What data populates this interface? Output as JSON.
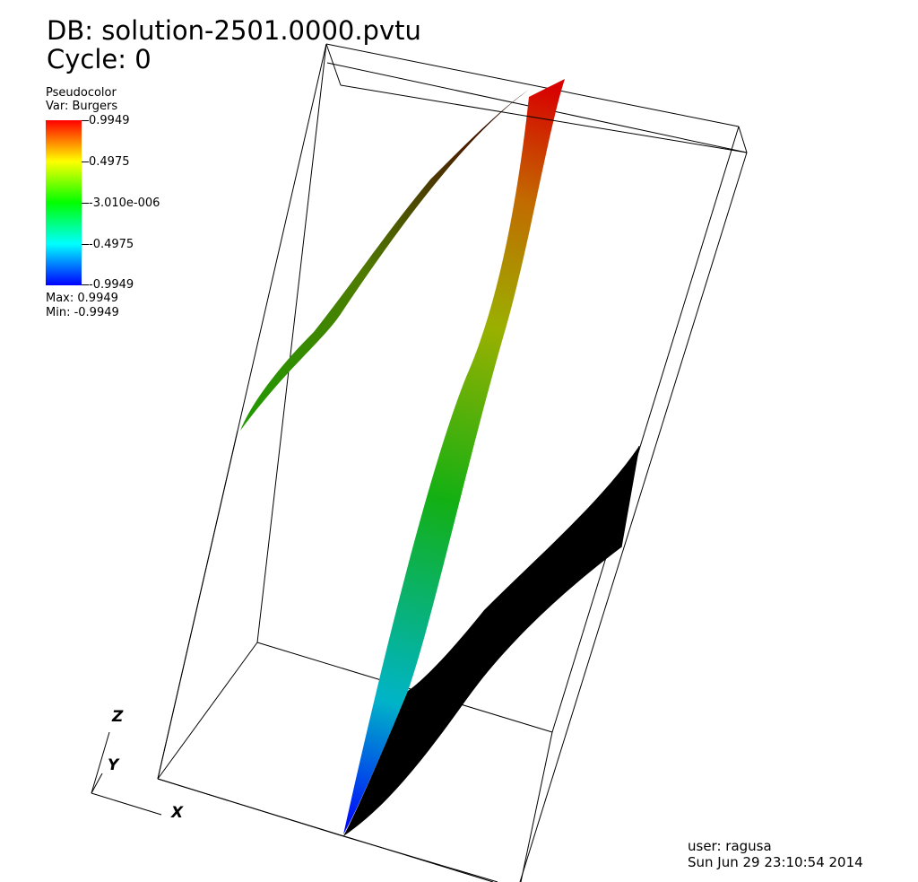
{
  "header": {
    "db": "DB: solution-2501.0000.pvtu",
    "cycle": "Cycle: 0"
  },
  "legend": {
    "plot_type": "Pseudocolor",
    "variable": "Var: Burgers",
    "ticks": [
      "0.9949",
      "0.4975",
      "-3.010e-006",
      "-0.4975",
      "-0.9949"
    ],
    "max": "Max:  0.9949",
    "min": "Min: -0.9949",
    "colormap": [
      "#ff0000",
      "#ffff00",
      "#00ff00",
      "#00ffff",
      "#0000ff"
    ]
  },
  "axes": {
    "x": "X",
    "y": "Y",
    "z": "Z"
  },
  "footer": {
    "user": "user: ragusa",
    "date": "Sun Jun 29 23:10:54 2014"
  },
  "colors": {
    "background": "#ffffff",
    "mesh_line": "#000000",
    "shadow_surface": "#000000"
  }
}
